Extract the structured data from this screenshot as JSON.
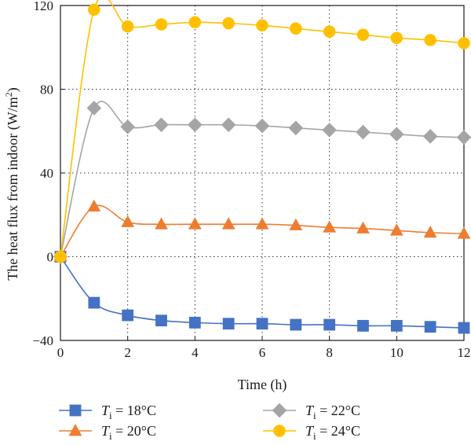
{
  "chart_data": {
    "type": "line",
    "xlabel": "Time (h)",
    "ylabel": {
      "main": "The heat flux from indoor (W/m",
      "sup": "2",
      "end": ")"
    },
    "xlim": [
      0,
      12
    ],
    "ylim": [
      -40,
      120
    ],
    "xticks": [
      0,
      2,
      4,
      6,
      8,
      10,
      12
    ],
    "yticks": [
      -40,
      0,
      40,
      80,
      120
    ],
    "grid": "dotted-vertical-and-horizontal",
    "legend_position": "bottom",
    "x": [
      0,
      1,
      2,
      3,
      4,
      5,
      6,
      7,
      8,
      9,
      10,
      11,
      12
    ],
    "series": [
      {
        "name": "T",
        "sub": "i",
        "rest": " = 18°C",
        "color": "#4472c4",
        "marker": "square",
        "values": [
          0,
          -22,
          -28,
          -30.5,
          -31.5,
          -32,
          -32,
          -32.5,
          -32.5,
          -33,
          -33,
          -33.5,
          -34
        ]
      },
      {
        "name": "T",
        "sub": "i",
        "rest": " = 20°C",
        "color": "#ed7d31",
        "marker": "triangle",
        "values": [
          0,
          24,
          16.5,
          15.5,
          15.5,
          15.5,
          15.5,
          15,
          14,
          13.5,
          12.5,
          11.5,
          11
        ]
      },
      {
        "name": "T",
        "sub": "i",
        "rest": " = 22°C",
        "color": "#a5a5a5",
        "marker": "diamond",
        "values": [
          0,
          71,
          62,
          63,
          63,
          63,
          62.5,
          61.5,
          60.5,
          59.5,
          58.5,
          57.5,
          57
        ]
      },
      {
        "name": "T",
        "sub": "i",
        "rest": " = 24°C",
        "color": "#ffc000",
        "marker": "circle",
        "values": [
          0,
          118,
          110,
          111,
          112,
          111.5,
          110.5,
          109,
          107.5,
          106,
          104.5,
          103.5,
          102
        ]
      }
    ]
  }
}
